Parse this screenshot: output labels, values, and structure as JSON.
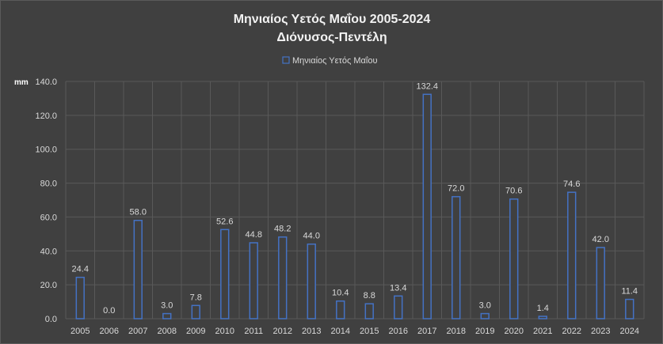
{
  "chart_data": {
    "type": "bar",
    "title": "Μηνιαίος Υετός Μαΐου 2005-2024",
    "subtitle": "Διόνυσος-Πεντέλη",
    "ylabel": "mm",
    "legend": "top",
    "grid": true,
    "ylim": [
      0,
      140
    ],
    "yticks": [
      "0.0",
      "20.0",
      "40.0",
      "60.0",
      "80.0",
      "100.0",
      "120.0",
      "140.0"
    ],
    "categories": [
      "2005",
      "2006",
      "2007",
      "2008",
      "2009",
      "2010",
      "2011",
      "2012",
      "2013",
      "2014",
      "2015",
      "2016",
      "2017",
      "2018",
      "2019",
      "2020",
      "2021",
      "2022",
      "2023",
      "2024"
    ],
    "series": [
      {
        "name": "Μηνιαίος Υετός  Μαΐου",
        "color": "#4472c4",
        "values": [
          24.4,
          0.0,
          58.0,
          3.0,
          7.8,
          52.6,
          44.8,
          48.2,
          44.0,
          10.4,
          8.8,
          13.4,
          132.4,
          72.0,
          3.0,
          70.6,
          1.4,
          74.6,
          42.0,
          11.4
        ],
        "labels": [
          "24.4",
          "0.0",
          "58.0",
          "3.0",
          "7.8",
          "52.6",
          "44.8",
          "48.2",
          "44.0",
          "10.4",
          "8.8",
          "13.4",
          "132.4",
          "72.0",
          "3.0",
          "70.6",
          "1.4",
          "74.6",
          "42.0",
          "11.4"
        ]
      }
    ]
  }
}
